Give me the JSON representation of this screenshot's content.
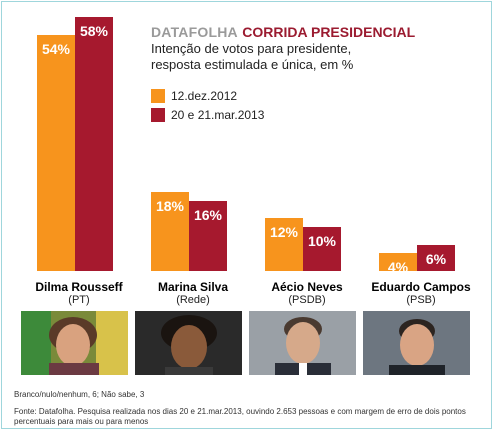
{
  "header": {
    "brand": "DATAFOLHA",
    "title": "CORRIDA PRESIDENCIAL",
    "subtitle_line1": "Intenção de votos para presidente,",
    "subtitle_line2": "resposta estimulada e única, em %"
  },
  "colors": {
    "series1": "#f7941d",
    "series2": "#a6192e"
  },
  "chart_data": {
    "type": "bar",
    "categories": [
      "Dilma Rousseff",
      "Marina Silva",
      "Aécio Neves",
      "Eduardo Campos"
    ],
    "parties": [
      "(PT)",
      "(Rede)",
      "(PSDB)",
      "(PSB)"
    ],
    "series": [
      {
        "name": "12.dez.2012",
        "values": [
          54,
          18,
          12,
          4
        ],
        "labels": [
          "54%",
          "18%",
          "12%",
          "4%"
        ]
      },
      {
        "name": "20 e 21.mar.2013",
        "values": [
          58,
          16,
          10,
          6
        ],
        "labels": [
          "58%",
          "16%",
          "10%",
          "6%"
        ]
      }
    ],
    "ylim": [
      0,
      58
    ]
  },
  "photos": [
    "photo-dilma-rousseff",
    "photo-marina-silva",
    "photo-aecio-neves",
    "photo-eduardo-campos"
  ],
  "footer": {
    "note": "Branco/nulo/nenhum, 6; Não sabe, 3",
    "source_line1": "Fonte: Datafolha. Pesquisa realizada nos dias 20 e 21.mar.2013, ouvindo 2.653 pessoas e com margem de erro de dois pontos",
    "source_line2": "percentuais para mais ou para menos"
  }
}
